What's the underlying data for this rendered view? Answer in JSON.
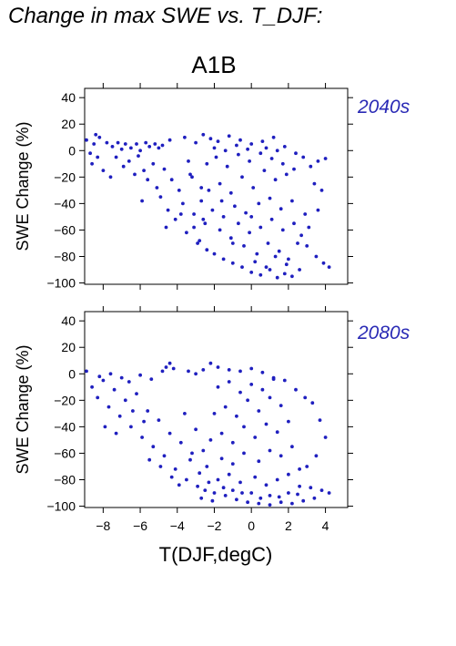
{
  "title": "Change in max SWE vs. T_DJF:",
  "scenario": "A1B",
  "colors": {
    "points": "#1f1fbf",
    "panel_label": "#2a2ab5",
    "axis": "#000000"
  },
  "chart_data": [
    {
      "type": "scatter",
      "panel_label": "2040s",
      "xlabel": "T(DJF,degC)",
      "ylabel": "SWE Change (%)",
      "xlim": [
        -9,
        5.2
      ],
      "ylim": [
        -101,
        47
      ],
      "xticks": [
        -8,
        -6,
        -4,
        -2,
        0,
        2,
        4
      ],
      "yticks": [
        40,
        20,
        0,
        -20,
        -40,
        -60,
        -80,
        -100
      ],
      "x_tick_labels_shown": false,
      "series": [
        {
          "points": [
            [
              -8.9,
              8
            ],
            [
              -8.4,
              12
            ],
            [
              -8.2,
              10
            ],
            [
              -8.5,
              5
            ],
            [
              -7.8,
              6
            ],
            [
              -8.7,
              -2
            ],
            [
              -8.3,
              -5
            ],
            [
              -8.6,
              -10
            ],
            [
              -7.5,
              3
            ],
            [
              -7.2,
              6
            ],
            [
              -7.0,
              1
            ],
            [
              -6.8,
              5
            ],
            [
              -6.5,
              2
            ],
            [
              -6.2,
              5
            ],
            [
              -6.0,
              0
            ],
            [
              -5.7,
              6
            ],
            [
              -5.5,
              3
            ],
            [
              -5.2,
              5
            ],
            [
              -5.0,
              2
            ],
            [
              -4.8,
              4
            ],
            [
              -7.3,
              -5
            ],
            [
              -6.9,
              -12
            ],
            [
              -6.6,
              -8
            ],
            [
              -6.3,
              -18
            ],
            [
              -6.1,
              -4
            ],
            [
              -5.8,
              -15
            ],
            [
              -5.6,
              -22
            ],
            [
              -5.3,
              -10
            ],
            [
              -5.1,
              -28
            ],
            [
              -4.9,
              -35
            ],
            [
              -4.7,
              -14
            ],
            [
              -4.5,
              -45
            ],
            [
              -4.3,
              -22
            ],
            [
              -4.1,
              -52
            ],
            [
              -3.9,
              -30
            ],
            [
              -3.7,
              -40
            ],
            [
              -3.5,
              -62
            ],
            [
              -3.3,
              -18
            ],
            [
              -3.1,
              -48
            ],
            [
              -2.9,
              -70
            ],
            [
              -2.7,
              -28
            ],
            [
              -2.5,
              -55
            ],
            [
              -5.9,
              -38
            ],
            [
              -4.6,
              -58
            ],
            [
              -3.8,
              -48
            ],
            [
              -7.6,
              -20
            ],
            [
              -8.0,
              -15
            ],
            [
              -4.4,
              8
            ],
            [
              -3.6,
              10
            ],
            [
              -3.0,
              6
            ],
            [
              -2.6,
              12
            ],
            [
              -2.2,
              9
            ],
            [
              -1.8,
              7
            ],
            [
              -1.2,
              11
            ],
            [
              -0.6,
              8
            ],
            [
              0.0,
              5
            ],
            [
              0.6,
              7
            ],
            [
              1.2,
              10
            ],
            [
              1.8,
              3
            ],
            [
              2.4,
              -2
            ],
            [
              2.8,
              -5
            ],
            [
              3.2,
              -12
            ],
            [
              3.6,
              -8
            ],
            [
              4.0,
              -6
            ],
            [
              3.8,
              -30
            ],
            [
              3.4,
              -25
            ],
            [
              3.9,
              -85
            ],
            [
              4.2,
              -88
            ],
            [
              3.5,
              -80
            ],
            [
              3.0,
              -72
            ],
            [
              2.6,
              -90
            ],
            [
              2.2,
              -95
            ],
            [
              1.8,
              -93
            ],
            [
              1.4,
              -96
            ],
            [
              1.0,
              -90
            ],
            [
              0.5,
              -94
            ],
            [
              0.0,
              -92
            ],
            [
              -0.5,
              -88
            ],
            [
              -1.0,
              -85
            ],
            [
              -1.5,
              -82
            ],
            [
              -2.0,
              -78
            ],
            [
              -2.4,
              -75
            ],
            [
              -2.8,
              -68
            ],
            [
              -1.7,
              -60
            ],
            [
              -1.1,
              -66
            ],
            [
              -0.4,
              -72
            ],
            [
              0.3,
              -78
            ],
            [
              0.9,
              -70
            ],
            [
              1.5,
              -76
            ],
            [
              2.0,
              -82
            ],
            [
              2.5,
              -70
            ],
            [
              -0.7,
              -55
            ],
            [
              -0.1,
              -62
            ],
            [
              0.5,
              -58
            ],
            [
              1.1,
              -52
            ],
            [
              1.7,
              -60
            ],
            [
              2.3,
              -55
            ],
            [
              2.9,
              -48
            ],
            [
              -2.1,
              -45
            ],
            [
              -1.5,
              -50
            ],
            [
              -0.9,
              -42
            ],
            [
              -0.3,
              -47
            ],
            [
              0.4,
              -40
            ],
            [
              1.0,
              -36
            ],
            [
              1.6,
              -44
            ],
            [
              2.2,
              -38
            ],
            [
              -2.3,
              -30
            ],
            [
              -1.7,
              -25
            ],
            [
              -1.1,
              -32
            ],
            [
              -0.5,
              -20
            ],
            [
              0.1,
              -28
            ],
            [
              0.7,
              -15
            ],
            [
              1.3,
              -22
            ],
            [
              1.9,
              -18
            ],
            [
              -2.4,
              -10
            ],
            [
              -1.9,
              -5
            ],
            [
              -1.3,
              -12
            ],
            [
              -0.7,
              -3
            ],
            [
              -0.1,
              -8
            ],
            [
              0.5,
              -2
            ],
            [
              1.1,
              -6
            ],
            [
              1.7,
              -10
            ],
            [
              2.3,
              -14
            ],
            [
              -3.2,
              -20
            ],
            [
              -2.7,
              -38
            ],
            [
              -3.4,
              -8
            ],
            [
              -2.0,
              2
            ],
            [
              -1.4,
              0
            ],
            [
              -0.8,
              4
            ],
            [
              -0.2,
              1
            ],
            [
              0.8,
              2
            ],
            [
              1.4,
              0
            ],
            [
              -1.0,
              -70
            ],
            [
              0.2,
              -84
            ],
            [
              0.8,
              -88
            ],
            [
              1.3,
              -80
            ],
            [
              1.9,
              -86
            ],
            [
              -2.6,
              -52
            ],
            [
              -3.1,
              -58
            ],
            [
              -1.6,
              -38
            ],
            [
              0.0,
              -50
            ],
            [
              2.7,
              -64
            ],
            [
              3.1,
              -58
            ],
            [
              3.6,
              -45
            ]
          ]
        }
      ]
    },
    {
      "type": "scatter",
      "panel_label": "2080s",
      "xlabel": "T(DJF,degC)",
      "ylabel": "SWE Change (%)",
      "xlim": [
        -9,
        5.2
      ],
      "ylim": [
        -101,
        47
      ],
      "xticks": [
        -8,
        -6,
        -4,
        -2,
        0,
        2,
        4
      ],
      "x_tick_labels": [
        "−8",
        "−6",
        "−4",
        "−2",
        "0",
        "2",
        "4"
      ],
      "yticks": [
        40,
        20,
        0,
        -20,
        -40,
        -60,
        -80,
        -100
      ],
      "series": [
        {
          "points": [
            [
              -8.9,
              2
            ],
            [
              -8.6,
              -10
            ],
            [
              -8.3,
              -18
            ],
            [
              -8.0,
              -5
            ],
            [
              -7.7,
              -25
            ],
            [
              -7.4,
              -12
            ],
            [
              -7.1,
              -32
            ],
            [
              -6.8,
              -20
            ],
            [
              -6.5,
              -40
            ],
            [
              -6.2,
              -15
            ],
            [
              -5.9,
              -48
            ],
            [
              -5.6,
              -28
            ],
            [
              -5.3,
              -55
            ],
            [
              -5.0,
              -35
            ],
            [
              -4.7,
              -62
            ],
            [
              -4.4,
              -45
            ],
            [
              -4.1,
              -72
            ],
            [
              -3.8,
              -52
            ],
            [
              -3.5,
              -80
            ],
            [
              -3.2,
              -60
            ],
            [
              -2.9,
              -85
            ],
            [
              -8.2,
              -2
            ],
            [
              -7.6,
              0
            ],
            [
              -7.0,
              -3
            ],
            [
              -6.6,
              -6
            ],
            [
              -6.0,
              -1
            ],
            [
              -5.4,
              -4
            ],
            [
              -4.8,
              2
            ],
            [
              -4.6,
              5
            ],
            [
              -4.4,
              8
            ],
            [
              -4.2,
              4
            ],
            [
              -3.4,
              2
            ],
            [
              -3.0,
              0
            ],
            [
              -2.6,
              3
            ],
            [
              -2.2,
              8
            ],
            [
              -1.8,
              5
            ],
            [
              -1.2,
              3
            ],
            [
              -0.6,
              2
            ],
            [
              0.0,
              4
            ],
            [
              0.6,
              1
            ],
            [
              1.2,
              -3
            ],
            [
              1.8,
              -5
            ],
            [
              2.4,
              -12
            ],
            [
              2.9,
              -18
            ],
            [
              3.3,
              -22
            ],
            [
              3.7,
              -35
            ],
            [
              4.0,
              -48
            ],
            [
              3.5,
              -62
            ],
            [
              3.0,
              -70
            ],
            [
              3.8,
              -88
            ],
            [
              4.2,
              -90
            ],
            [
              3.4,
              -94
            ],
            [
              2.8,
              -96
            ],
            [
              2.2,
              -98
            ],
            [
              1.6,
              -97
            ],
            [
              1.0,
              -99
            ],
            [
              0.4,
              -98
            ],
            [
              -0.2,
              -97
            ],
            [
              -0.8,
              -95
            ],
            [
              -1.4,
              -92
            ],
            [
              -2.0,
              -90
            ],
            [
              -2.5,
              -88
            ],
            [
              -1.0,
              -88
            ],
            [
              0.0,
              -90
            ],
            [
              1.0,
              -92
            ],
            [
              2.0,
              -90
            ],
            [
              2.6,
              -85
            ],
            [
              -1.8,
              -80
            ],
            [
              -1.2,
              -76
            ],
            [
              -0.6,
              -82
            ],
            [
              0.2,
              -78
            ],
            [
              0.8,
              -84
            ],
            [
              1.4,
              -80
            ],
            [
              2.0,
              -76
            ],
            [
              2.6,
              -72
            ],
            [
              -2.4,
              -70
            ],
            [
              -1.6,
              -64
            ],
            [
              -1.0,
              -68
            ],
            [
              -0.4,
              -60
            ],
            [
              0.4,
              -66
            ],
            [
              1.0,
              -58
            ],
            [
              1.6,
              -62
            ],
            [
              2.2,
              -55
            ],
            [
              -2.2,
              -50
            ],
            [
              -1.6,
              -45
            ],
            [
              -1.0,
              -52
            ],
            [
              -0.4,
              -40
            ],
            [
              0.2,
              -48
            ],
            [
              0.8,
              -38
            ],
            [
              1.4,
              -44
            ],
            [
              2.0,
              -36
            ],
            [
              -2.0,
              -30
            ],
            [
              -1.4,
              -25
            ],
            [
              -0.8,
              -32
            ],
            [
              -0.2,
              -20
            ],
            [
              0.4,
              -28
            ],
            [
              1.0,
              -18
            ],
            [
              1.6,
              -24
            ],
            [
              -1.8,
              -10
            ],
            [
              -1.2,
              -6
            ],
            [
              -0.6,
              -14
            ],
            [
              0.0,
              -8
            ],
            [
              0.6,
              -12
            ],
            [
              1.2,
              -4
            ],
            [
              -3.6,
              -30
            ],
            [
              -3.0,
              -42
            ],
            [
              -2.6,
              -58
            ],
            [
              -3.3,
              -65
            ],
            [
              -2.8,
              -75
            ],
            [
              -2.3,
              -82
            ],
            [
              -1.5,
              -86
            ],
            [
              -0.5,
              -90
            ],
            [
              0.5,
              -94
            ],
            [
              1.5,
              -93
            ],
            [
              2.5,
              -91
            ],
            [
              3.2,
              -86
            ],
            [
              -6.4,
              -28
            ],
            [
              -5.8,
              -36
            ],
            [
              -7.9,
              -40
            ],
            [
              -7.3,
              -45
            ],
            [
              -5.5,
              -65
            ],
            [
              -4.9,
              -70
            ],
            [
              -4.3,
              -78
            ],
            [
              -3.9,
              -84
            ],
            [
              -2.7,
              -94
            ],
            [
              -2.1,
              -96
            ]
          ]
        }
      ]
    }
  ]
}
